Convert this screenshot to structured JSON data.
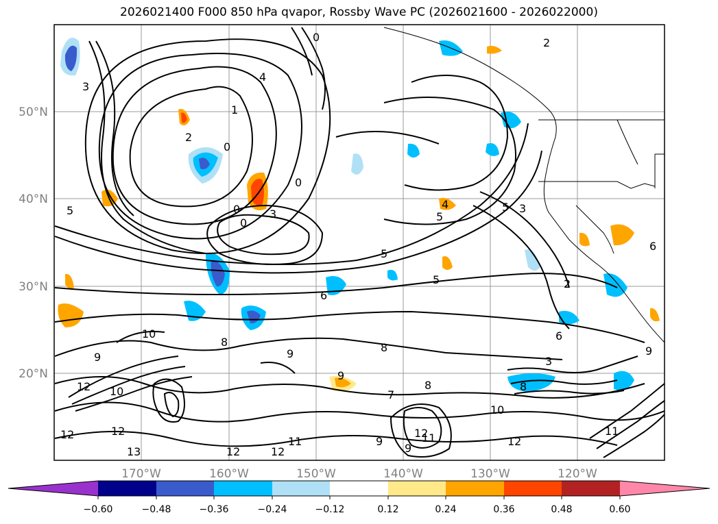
{
  "title": "2026021400 F000 850 hPa qvapor, Rossby Wave PC (2026021600 - 2026022000)",
  "lat_labels": [
    "50°N",
    "40°N",
    "30°N",
    "20°N"
  ],
  "lon_labels": [
    "170°W",
    "160°W",
    "150°W",
    "140°W",
    "130°W",
    "120°W"
  ],
  "colorbar": {
    "tick_labels": [
      "−0.60",
      "−0.48",
      "−0.36",
      "−0.24",
      "−0.12",
      "0.12",
      "0.24",
      "0.36",
      "0.48",
      "0.60"
    ],
    "colors": [
      "#9932cc",
      "#00008b",
      "#3a5bcc",
      "#00bfff",
      "#b0e0f6",
      "#ffffff",
      "#ffe98a",
      "#ffa500",
      "#ff4500",
      "#b22222",
      "#ff88aa"
    ]
  },
  "contour_labels": [
    "2",
    "4",
    "3",
    "1",
    "2",
    "0",
    "0",
    "0",
    "0",
    "0",
    "3",
    "5",
    "5",
    "4",
    "5",
    "5",
    "3",
    "2",
    "6",
    "5",
    "6",
    "8",
    "10",
    "9",
    "9",
    "8",
    "12",
    "10",
    "8",
    "12",
    "11",
    "9",
    "13",
    "12",
    "12",
    "11",
    "9",
    "9",
    "10",
    "12",
    "8",
    "3",
    "6",
    "9",
    "11",
    "12",
    "12",
    "7"
  ]
}
